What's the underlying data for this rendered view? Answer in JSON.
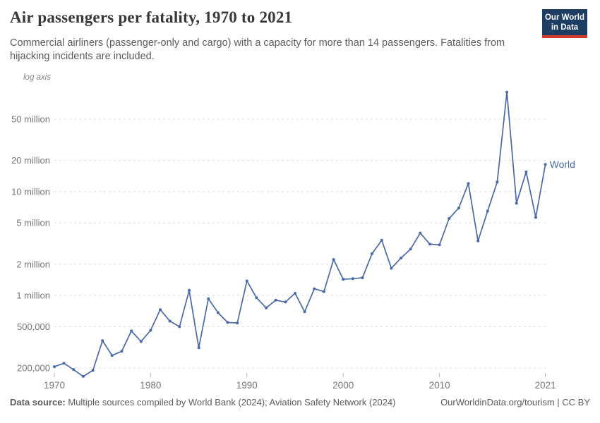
{
  "header": {
    "logo": {
      "line1": "Our World",
      "line2": "in Data"
    }
  },
  "chart_data": {
    "type": "line",
    "title": "Air passengers per fatality, 1970 to 2021",
    "subtitle": "Commercial airliners (passenger-only and cargo) with a capacity for more than 14 passengers. Fatalities from hijacking incidents are included.",
    "axis_note": "log axis",
    "xlabel": "",
    "ylabel": "",
    "scale": "log-y",
    "grid": "horizontal-dashed",
    "legend": "end-of-line-label",
    "xlim": [
      1970,
      2021
    ],
    "ylim_log": [
      150000,
      105000000
    ],
    "x_ticks": [
      1970,
      1980,
      1990,
      2000,
      2010,
      2021
    ],
    "y_ticks": [
      {
        "value": 200000,
        "label": "200,000"
      },
      {
        "value": 500000,
        "label": "500,000"
      },
      {
        "value": 1000000,
        "label": "1 million"
      },
      {
        "value": 2000000,
        "label": "2 million"
      },
      {
        "value": 5000000,
        "label": "5 million"
      },
      {
        "value": 10000000,
        "label": "10 million"
      },
      {
        "value": 20000000,
        "label": "20 million"
      },
      {
        "value": 50000000,
        "label": "50 million"
      }
    ],
    "series": [
      {
        "name": "World",
        "label": "World",
        "x": [
          1970,
          1971,
          1972,
          1973,
          1974,
          1975,
          1976,
          1977,
          1978,
          1979,
          1980,
          1981,
          1982,
          1983,
          1984,
          1985,
          1986,
          1987,
          1988,
          1989,
          1990,
          1991,
          1992,
          1993,
          1994,
          1995,
          1996,
          1997,
          1998,
          1999,
          2000,
          2001,
          2002,
          2003,
          2004,
          2005,
          2006,
          2007,
          2008,
          2009,
          2010,
          2011,
          2012,
          2013,
          2014,
          2015,
          2016,
          2017,
          2018,
          2019,
          2020,
          2021
        ],
        "y": [
          206000,
          222000,
          193000,
          166000,
          190000,
          366000,
          264000,
          290000,
          455000,
          360000,
          462000,
          730000,
          566000,
          500000,
          1120000,
          313000,
          930000,
          683000,
          549000,
          543000,
          1380000,
          951000,
          759000,
          901000,
          865000,
          1050000,
          695000,
          1160000,
          1090000,
          2220000,
          1430000,
          1450000,
          1480000,
          2530000,
          3410000,
          1830000,
          2290000,
          2800000,
          3990000,
          3120000,
          3080000,
          5510000,
          6960000,
          12000000,
          3350000,
          6500000,
          12400000,
          91000000,
          7740000,
          15500000,
          5660000,
          18300000
        ]
      }
    ]
  },
  "footer": {
    "source_label": "Data source:",
    "source_text": " Multiple sources compiled by World Bank (2024); Aviation Safety Network (2024)",
    "right_text": "OurWorldinData.org/tourism | CC BY"
  },
  "colors": {
    "line": "#4a69a8",
    "grid": "#dcdcdc",
    "tick": "#b3b3b3",
    "axis_text": "#777777",
    "title_text": "#373737",
    "body_text": "#5b5b5b",
    "logo_bg": "#1d3d63",
    "logo_stripe": "#d73c32"
  }
}
